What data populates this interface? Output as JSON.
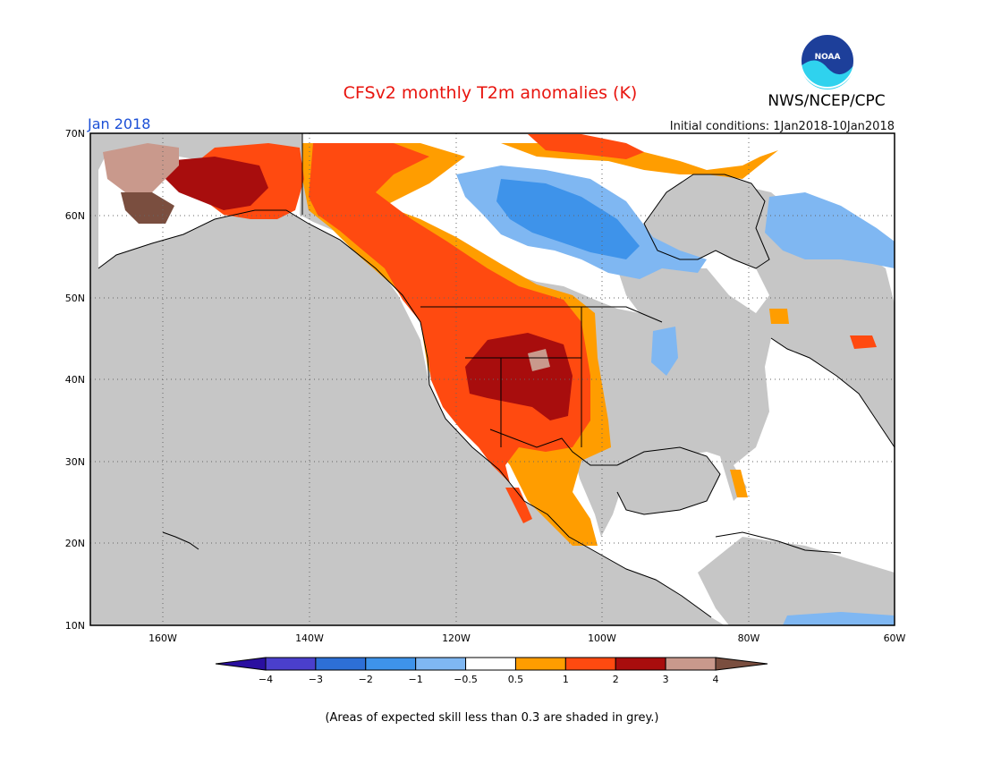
{
  "title": "CFSv2 monthly T2m anomalies (K)",
  "date_label": "Jan 2018",
  "initial_conditions": "Initial conditions: 1Jan2018-10Jan2018",
  "organization": "NWS/NCEP/CPC",
  "logo_text": "NOAA",
  "footnote": "(Areas of expected skill less than 0.3 are shaded in grey.)",
  "map": {
    "lat_labels": [
      "70N",
      "60N",
      "50N",
      "40N",
      "30N",
      "20N",
      "10N"
    ],
    "lon_labels": [
      "160W",
      "140W",
      "120W",
      "100W",
      "80W",
      "60W"
    ],
    "lon_range": [
      -171,
      -60
    ],
    "lat_range": [
      10,
      70
    ],
    "no_skill_color": "#c6c6c6",
    "ocean_color": "#c6c6c6"
  },
  "colorbar": {
    "tick_labels": [
      "−4",
      "−3",
      "−2",
      "−1",
      "−0.5",
      "0.5",
      "1",
      "2",
      "3",
      "4"
    ],
    "colors": [
      "#2a0fa0",
      "#4a3fcc",
      "#2d6fd6",
      "#3e93ea",
      "#7fb7f2",
      "#ffffff",
      "#ff9d00",
      "#ff4a10",
      "#a80d0d",
      "#c9998c",
      "#7a4e3f"
    ]
  }
}
